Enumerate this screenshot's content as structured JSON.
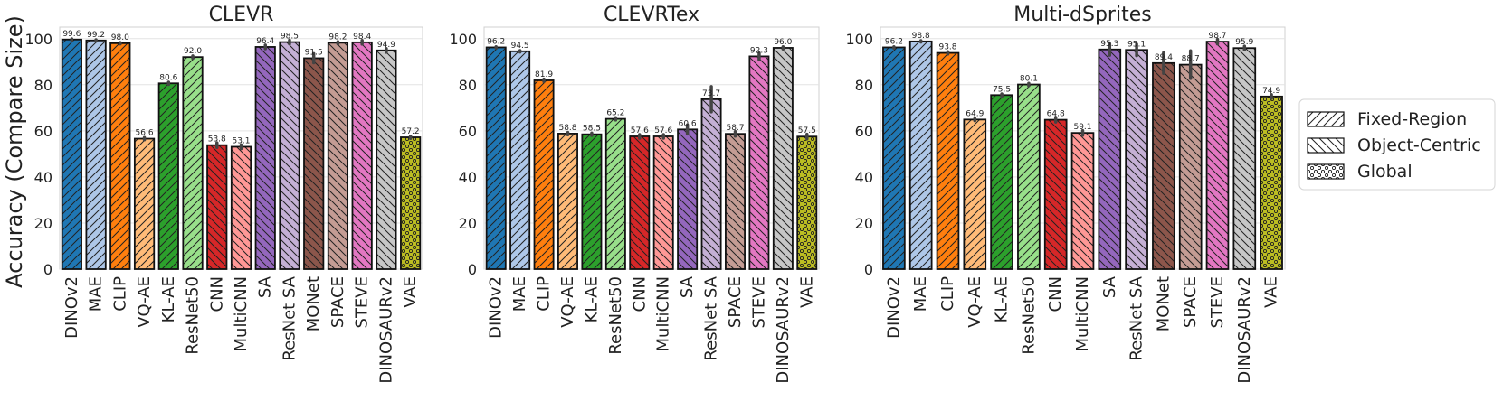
{
  "ylabel": "Accuracy (Compare Size)",
  "y_ticks": [
    "0",
    "20",
    "40",
    "60",
    "80",
    "100"
  ],
  "legend": [
    {
      "label": "Fixed-Region",
      "hatch": "fwd"
    },
    {
      "label": "Object-Centric",
      "hatch": "back"
    },
    {
      "label": "Global",
      "hatch": "dots"
    }
  ],
  "colors": {
    "DINOv2": "#1f77b4",
    "MAE": "#aec7e8",
    "CLIP": "#ff7f0e",
    "VQ-AE": "#ffbb78",
    "KL-AE": "#2ca02c",
    "ResNet50": "#98df8a",
    "CNN": "#d62728",
    "MultiCNN": "#ff9896",
    "SA": "#9467bd",
    "ResNet SA": "#c5b0d5",
    "MONet": "#8c564b",
    "SPACE": "#c49c94",
    "STEVE": "#e377c2",
    "DINOSAURv2": "#c7c7c7",
    "VAE": "#bcbd22"
  },
  "hatches": {
    "DINOv2": "fwd",
    "MAE": "fwd",
    "CLIP": "fwd",
    "VQ-AE": "fwd",
    "KL-AE": "fwd",
    "ResNet50": "fwd",
    "CNN": "back",
    "MultiCNN": "back",
    "SA": "back",
    "ResNet SA": "back",
    "MONet": "back",
    "SPACE": "back",
    "STEVE": "back",
    "DINOSAURv2": "back",
    "VAE": "dots"
  },
  "chart_data": [
    {
      "type": "bar",
      "title": "CLEVR",
      "ylim": [
        0,
        105
      ],
      "categories": [
        "DINOv2",
        "MAE",
        "CLIP",
        "VQ-AE",
        "KL-AE",
        "ResNet50",
        "CNN",
        "MultiCNN",
        "SA",
        "ResNet SA",
        "MONet",
        "SPACE",
        "STEVE",
        "DINOSAURv2",
        "VAE"
      ],
      "values": [
        99.6,
        99.2,
        98.0,
        56.6,
        80.6,
        92.0,
        53.8,
        53.1,
        96.4,
        98.5,
        91.5,
        98.2,
        98.4,
        94.9,
        57.2
      ],
      "labels": [
        "99.6",
        "99.2",
        "98.0",
        "56.6",
        "80.6",
        "92.0",
        "53.8",
        "53.1",
        "96.4",
        "98.5",
        "91.5",
        "98.2",
        "98.4",
        "94.9",
        "57.2"
      ],
      "errors": [
        0.3,
        0.3,
        0.3,
        0.5,
        0.5,
        0.5,
        1.0,
        0.8,
        0.8,
        0.8,
        2.0,
        0.5,
        0.8,
        0.8,
        0.5
      ]
    },
    {
      "type": "bar",
      "title": "CLEVRTex",
      "ylim": [
        0,
        105
      ],
      "categories": [
        "DINOv2",
        "MAE",
        "CLIP",
        "VQ-AE",
        "KL-AE",
        "ResNet50",
        "CNN",
        "MultiCNN",
        "SA",
        "ResNet SA",
        "SPACE",
        "STEVE",
        "DINOSAURv2",
        "VAE"
      ],
      "values": [
        96.2,
        94.5,
        81.9,
        58.8,
        58.5,
        65.2,
        57.6,
        57.6,
        60.6,
        73.7,
        58.7,
        92.3,
        96.0,
        57.5
      ],
      "labels": [
        "96.2",
        "94.5",
        "81.9",
        "58.8",
        "58.5",
        "65.2",
        "57.6",
        "57.6",
        "60.6",
        "73.7",
        "58.7",
        "92.3",
        "96.0",
        "57.5"
      ],
      "errors": [
        0.3,
        0.3,
        0.5,
        0.5,
        0.5,
        0.5,
        0.8,
        0.8,
        2.0,
        5.5,
        1.0,
        1.5,
        0.5,
        1.0
      ]
    },
    {
      "type": "bar",
      "title": "Multi-dSprites",
      "ylim": [
        0,
        105
      ],
      "categories": [
        "DINOv2",
        "MAE",
        "CLIP",
        "VQ-AE",
        "KL-AE",
        "ResNet50",
        "CNN",
        "MultiCNN",
        "SA",
        "ResNet SA",
        "MONet",
        "SPACE",
        "STEVE",
        "DINOSAURv2",
        "VAE"
      ],
      "values": [
        96.2,
        98.8,
        93.8,
        64.9,
        75.5,
        80.1,
        64.8,
        59.1,
        95.3,
        95.1,
        89.4,
        88.7,
        98.7,
        95.9,
        74.9
      ],
      "labels": [
        "96.2",
        "98.8",
        "93.8",
        "64.9",
        "75.5",
        "80.1",
        "64.8",
        "59.1",
        "95.3",
        "95.1",
        "89.4",
        "88.7",
        "98.7",
        "95.9",
        "74.9"
      ],
      "errors": [
        0.3,
        0.3,
        0.5,
        0.5,
        0.5,
        0.5,
        1.0,
        1.0,
        2.5,
        2.5,
        4.5,
        6.0,
        1.0,
        0.8,
        0.8
      ]
    }
  ]
}
